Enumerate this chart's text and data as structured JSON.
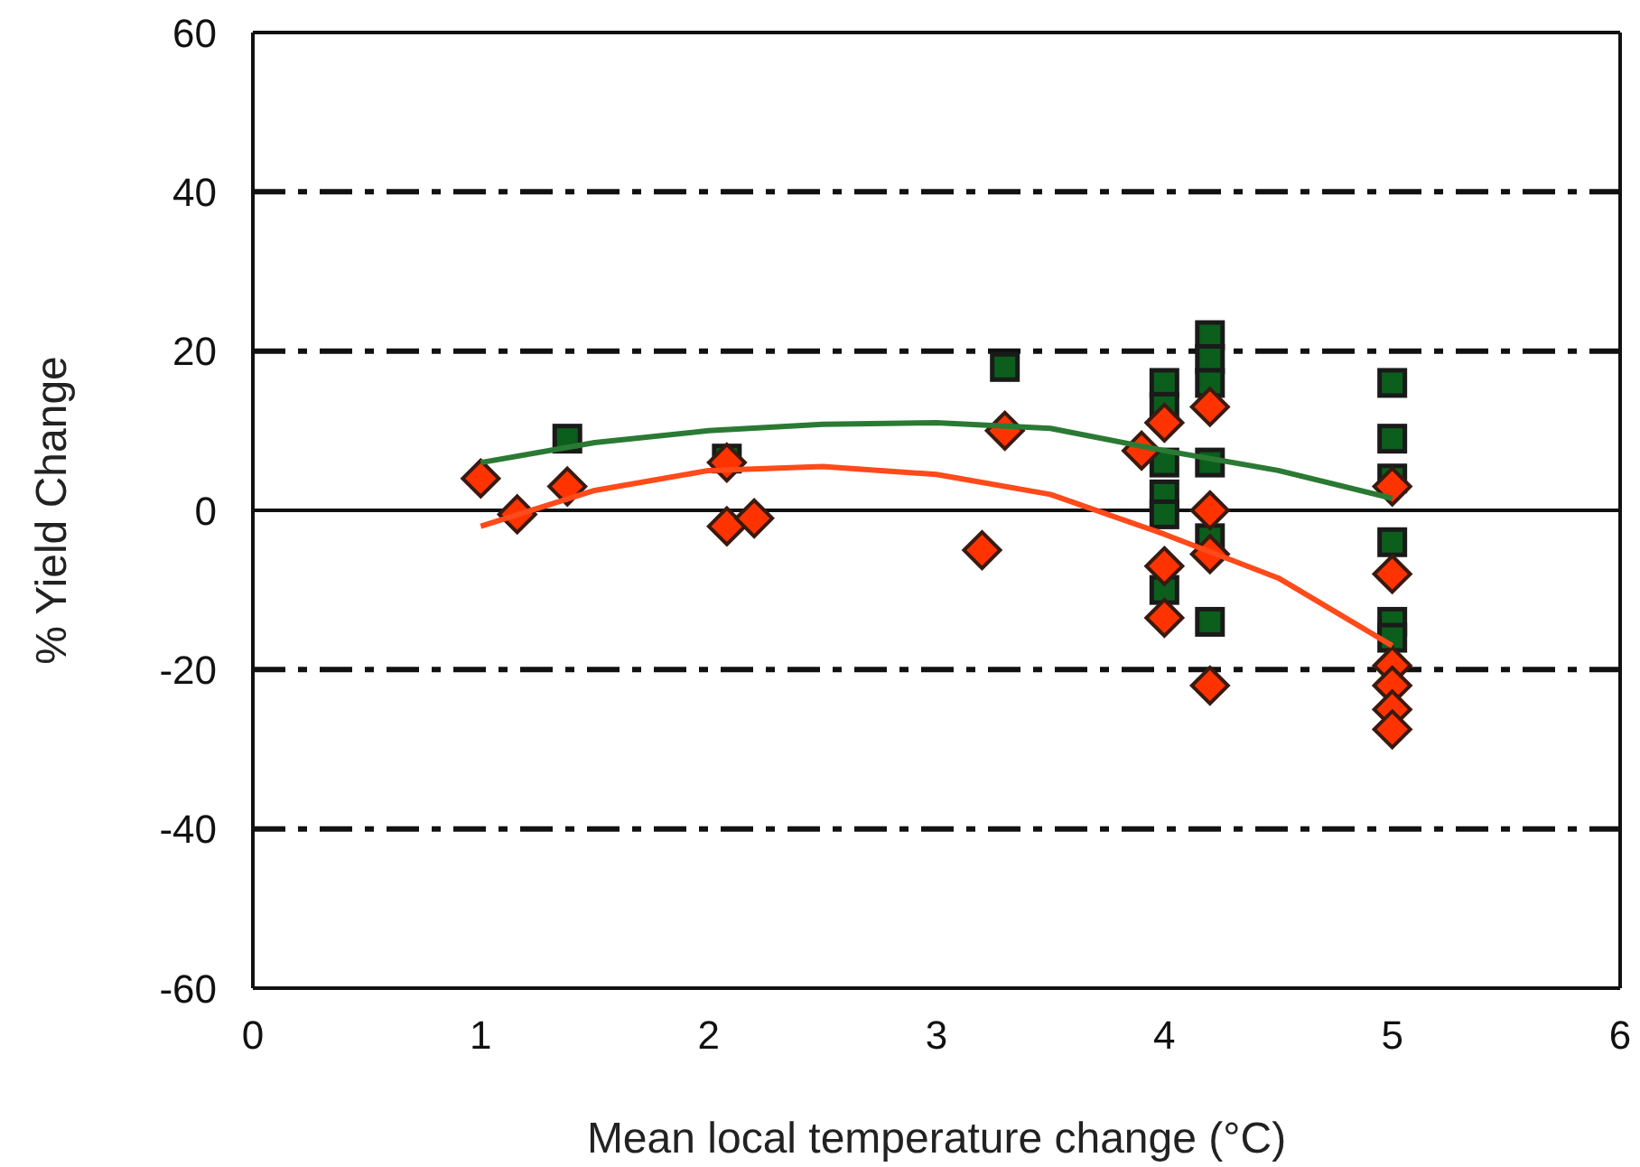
{
  "chart_data": {
    "type": "scatter",
    "xlabel": "Mean local temperature change (°C)",
    "ylabel": "% Yield Change",
    "xlim": [
      0,
      6
    ],
    "xticks": [
      0,
      1,
      2,
      3,
      4,
      5,
      6
    ],
    "ylim": [
      -60,
      60
    ],
    "yticks": [
      -60,
      -40,
      -20,
      0,
      20,
      40,
      60
    ],
    "legend": false,
    "series": [
      {
        "marker": "square",
        "color": "#0b5e1c",
        "x": [
          1.38,
          2.08,
          3.3,
          4.0,
          4.0,
          4.0,
          4.0,
          4.0,
          4.0,
          4.2,
          4.2,
          4.2,
          4.2,
          4.2,
          4.2,
          5.0,
          5.0,
          5.0,
          5.0,
          5.0,
          5.0
        ],
        "values": [
          9,
          6.5,
          18,
          16,
          13,
          6,
          2,
          -0.5,
          -10,
          22,
          19,
          16,
          6,
          -3.5,
          -14,
          16,
          9,
          4,
          -4,
          -14,
          -16
        ]
      },
      {
        "marker": "diamond",
        "color": "#ff3300",
        "x": [
          1.0,
          1.16,
          1.38,
          2.08,
          2.08,
          2.2,
          3.2,
          3.3,
          3.9,
          4.0,
          4.0,
          4.0,
          4.2,
          4.2,
          4.2,
          4.2,
          5.0,
          5.0,
          5.0,
          5.0,
          5.0,
          5.0
        ],
        "values": [
          4,
          -0.5,
          3,
          6,
          -2,
          -1,
          -5,
          10,
          7.5,
          11,
          -7,
          -13.5,
          13,
          0,
          -5.5,
          -22,
          3,
          -8,
          -19.5,
          -22,
          -25,
          -27.5
        ]
      },
      {
        "type": "line",
        "marker": "none",
        "color": "#2a7a34",
        "x": [
          1,
          1.5,
          2,
          2.5,
          3,
          3.5,
          4,
          4.5,
          5
        ],
        "values": [
          6,
          8.5,
          10,
          10.8,
          11,
          10.3,
          7.5,
          5,
          1.5
        ]
      },
      {
        "type": "line",
        "marker": "none",
        "color": "#ff4a1a",
        "x": [
          1,
          1.5,
          2,
          2.5,
          3,
          3.5,
          4,
          4.5,
          5
        ],
        "values": [
          -2,
          2.5,
          5,
          5.5,
          4.5,
          2,
          -3,
          -8.5,
          -17
        ]
      }
    ],
    "ref_lines": [
      {
        "axis": "y",
        "value": 40,
        "line_style": "dashed",
        "color": "#111111"
      },
      {
        "axis": "y",
        "value": 20,
        "line_style": "dashed",
        "color": "#111111"
      },
      {
        "axis": "y",
        "value": 0,
        "line_style": "solid",
        "color": "#111111"
      },
      {
        "axis": "y",
        "value": -20,
        "line_style": "dashed",
        "color": "#111111"
      },
      {
        "axis": "y",
        "value": -40,
        "line_style": "dashed",
        "color": "#111111"
      }
    ]
  }
}
